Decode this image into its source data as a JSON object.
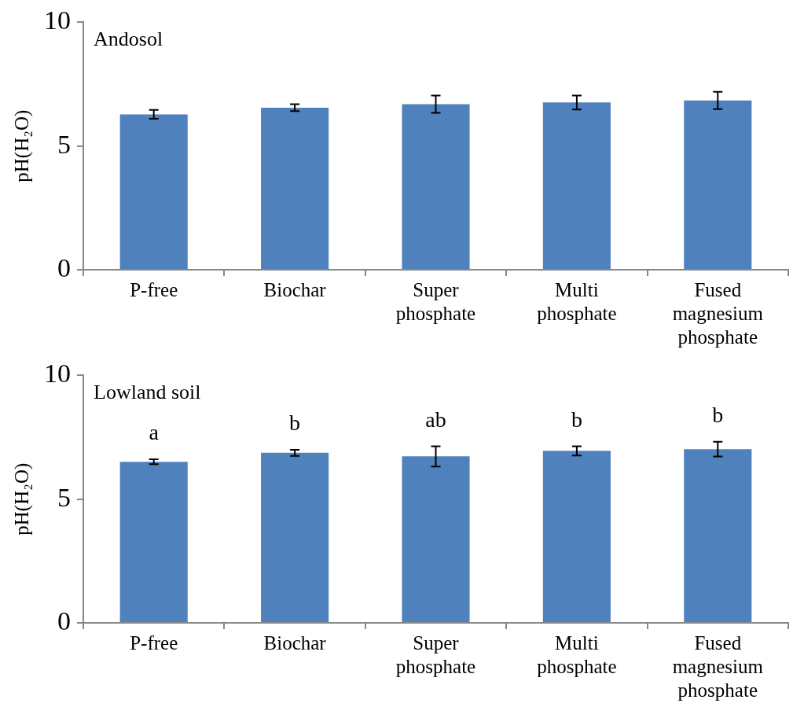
{
  "chart_data": [
    {
      "type": "bar",
      "title": "Andosol",
      "ylabel": "pH(H₂O)",
      "categories": [
        "P-free",
        "Biochar",
        "Super phosphate",
        "Multi phosphate",
        "Fused magnesium phosphate"
      ],
      "values": [
        6.28,
        6.55,
        6.69,
        6.76,
        6.84
      ],
      "errors": [
        0.18,
        0.14,
        0.35,
        0.28,
        0.35
      ],
      "color": "#4f81bd",
      "ylim": [
        0,
        10
      ],
      "yticks": [
        0,
        5,
        10
      ],
      "grid": false,
      "legend": false
    },
    {
      "type": "bar",
      "title": "Lowland soil",
      "ylabel": "pH(H₂O)",
      "categories": [
        "P-free",
        "Biochar",
        "Super phosphate",
        "Multi phosphate",
        "Fused magnesium phosphate"
      ],
      "values": [
        6.51,
        6.87,
        6.73,
        6.95,
        7.02
      ],
      "errors": [
        0.1,
        0.12,
        0.41,
        0.19,
        0.3
      ],
      "color": "#4f81bd",
      "ylim": [
        0,
        10
      ],
      "yticks": [
        0,
        5,
        10
      ],
      "grid": false,
      "legend": false,
      "annotations": [
        "a",
        "b",
        "ab",
        "b",
        "b"
      ]
    }
  ]
}
